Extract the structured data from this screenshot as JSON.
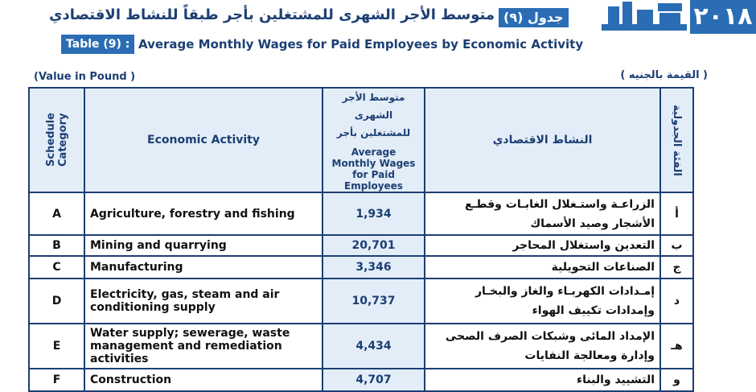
{
  "header": {
    "year": "٢٠١٨",
    "table_label_ar": "جدول (٩)",
    "title_ar": "متوسط الأجر الشهرى للمشتغلين بأجر طبقاً للنشاط الاقتصادي",
    "table_label_en": "Table (9) :",
    "title_en": "Average Monthly Wages for Paid Employees by Economic Activity"
  },
  "units": {
    "en": "(Value in  Pound )",
    "ar": "( القيمة بالجنيه )"
  },
  "table": {
    "columns": {
      "category_en": "Schedule Category",
      "activity_en": "Economic Activity",
      "wages_ar": "متوسط الأجر الشهرى للمشتغلين بأجر",
      "wages_en": "Average Monthly Wages for Paid Employees",
      "activity_ar": "النشاط الاقتصادي",
      "category_ar": "الفئة الجدولية"
    },
    "rows": [
      [
        "A",
        "Agriculture, forestry and fishing",
        "1,934",
        "الزراعـة واستـغلال الغابـات وقطـع الأشجار وصيد الأسماك",
        "أ"
      ],
      [
        "B",
        "Mining and quarrying",
        "20,701",
        "التعدين واستغلال المحاجر",
        "ب"
      ],
      [
        "C",
        "Manufacturing",
        "3,346",
        "الصناعات التحويلية",
        "ج"
      ],
      [
        "D",
        "Electricity, gas, steam and air conditioning supply",
        "10,737",
        "إمـدادات الكهربـاء والغاز والبخـار وإمدادات تكييف الهواء",
        "د"
      ],
      [
        "E",
        "Water supply; sewerage, waste management and remediation activities",
        "4,434",
        "الإمداد المائى وشبكات الصرف الصحى وإدارة ومعالجة النفايات",
        "هـ"
      ],
      [
        "F",
        "Construction",
        "4,707",
        "التشييد والبناء",
        "و"
      ]
    ]
  }
}
